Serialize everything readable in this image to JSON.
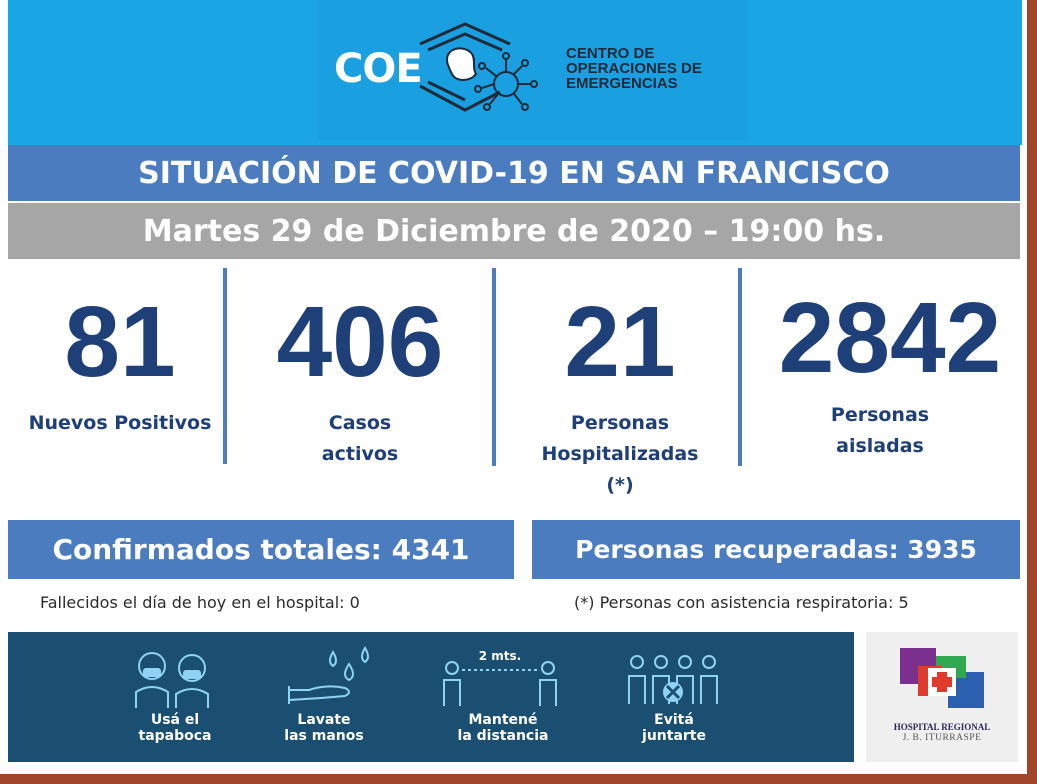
{
  "header": {
    "logo_word": "COE",
    "org_line1": "CENTRO DE",
    "org_line2": "OPERACIONES DE",
    "org_line3": "EMERGENCIAS"
  },
  "title": "SITUACIÓN DE COVID-19 EN SAN FRANCISCO",
  "date_line": "Martes 29 de Diciembre de 2020 – 19:00 hs.",
  "stats": [
    {
      "value": "81",
      "label_lines": [
        "Nuevos Positivos"
      ]
    },
    {
      "value": "406",
      "label_lines": [
        "Casos",
        "activos"
      ]
    },
    {
      "value": "21",
      "label_lines": [
        "Personas",
        "Hospitalizadas",
        "(*)"
      ]
    },
    {
      "value": "2842",
      "label_lines": [
        "Personas",
        "aisladas"
      ]
    }
  ],
  "totals": {
    "confirmed": "Confirmados totales: 4341",
    "recovered": "Personas recuperadas: 3935"
  },
  "notes": {
    "deaths": "Fallecidos el día de hoy en el hospital: 0",
    "respiratory": "(*) Personas con asistencia respiratoria: 5"
  },
  "tips": [
    {
      "icon": "masked-people-icon",
      "line1": "Usá el",
      "line2": "tapaboca"
    },
    {
      "icon": "wash-hands-icon",
      "line1": "Lavate",
      "line2": "las manos"
    },
    {
      "icon": "distance-icon",
      "line1": "Mantené",
      "line2": "la distancia",
      "distance_label": "2 mts."
    },
    {
      "icon": "no-gathering-icon",
      "line1": "Evitá",
      "line2": "juntarte"
    }
  ],
  "hospital": {
    "name": "HOSPITAL REGIONAL",
    "sub": "J. B. ITURRASPE"
  },
  "colors": {
    "header_blue": "#1aa5e6",
    "bar_blue": "#4a7cbf",
    "number_navy": "#1e3f78",
    "date_gray": "#a6a6a6",
    "tips_navy": "#1b4f72",
    "frame_brown": "#a0452a"
  }
}
